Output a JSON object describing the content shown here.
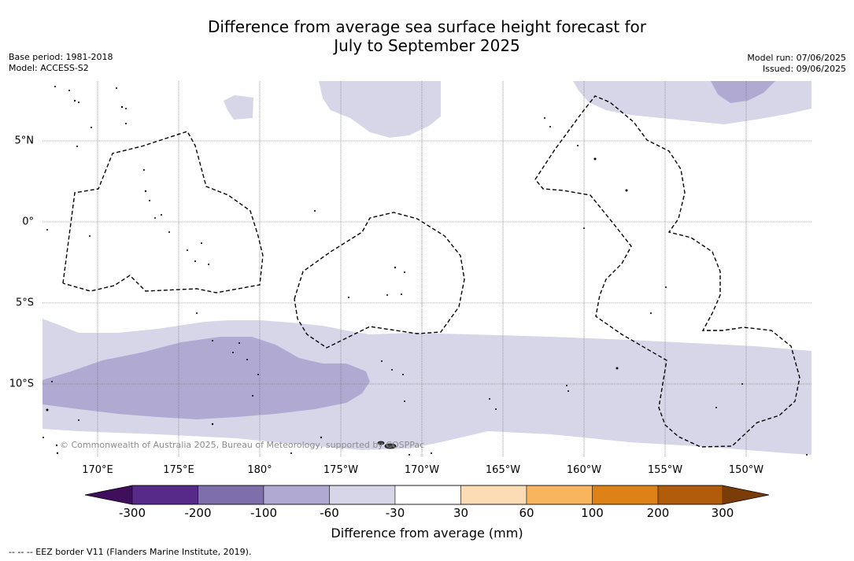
{
  "title_line1": "Difference from average sea surface height forecast for",
  "title_line2": "July to September 2025",
  "meta_left": {
    "base_period": "Base period: 1981-2018",
    "model": "Model: ACCESS-S2"
  },
  "meta_right": {
    "model_run": "Model run: 07/06/2025",
    "issued": "Issued: 09/06/2025"
  },
  "lon_labels": [
    "170°E",
    "175°E",
    "180°",
    "175°W",
    "170°W",
    "165°W",
    "160°W",
    "155°W",
    "150°W"
  ],
  "lat_labels": [
    "5°N",
    "0°",
    "5°S",
    "10°S"
  ],
  "copyright": "© Commonwealth of Australia 2025, Bureau of Meteorology, supported by COSPPac",
  "colorbar": {
    "labels": [
      "-300",
      "-200",
      "-100",
      "-60",
      "-30",
      "30",
      "60",
      "100",
      "200",
      "300"
    ],
    "colors": [
      "#3f0f5e",
      "#572a8a",
      "#7e6fac",
      "#b0aad2",
      "#d7d6e8",
      "#ffffff",
      "#fcdcb4",
      "#f8b55d",
      "#de8218",
      "#b05c0b",
      "#7a3d08"
    ],
    "title": "Difference from average (mm)"
  },
  "eez_note": "--  --  -- EEZ border V11 (Flanders Marine Institute, 2019)."
}
